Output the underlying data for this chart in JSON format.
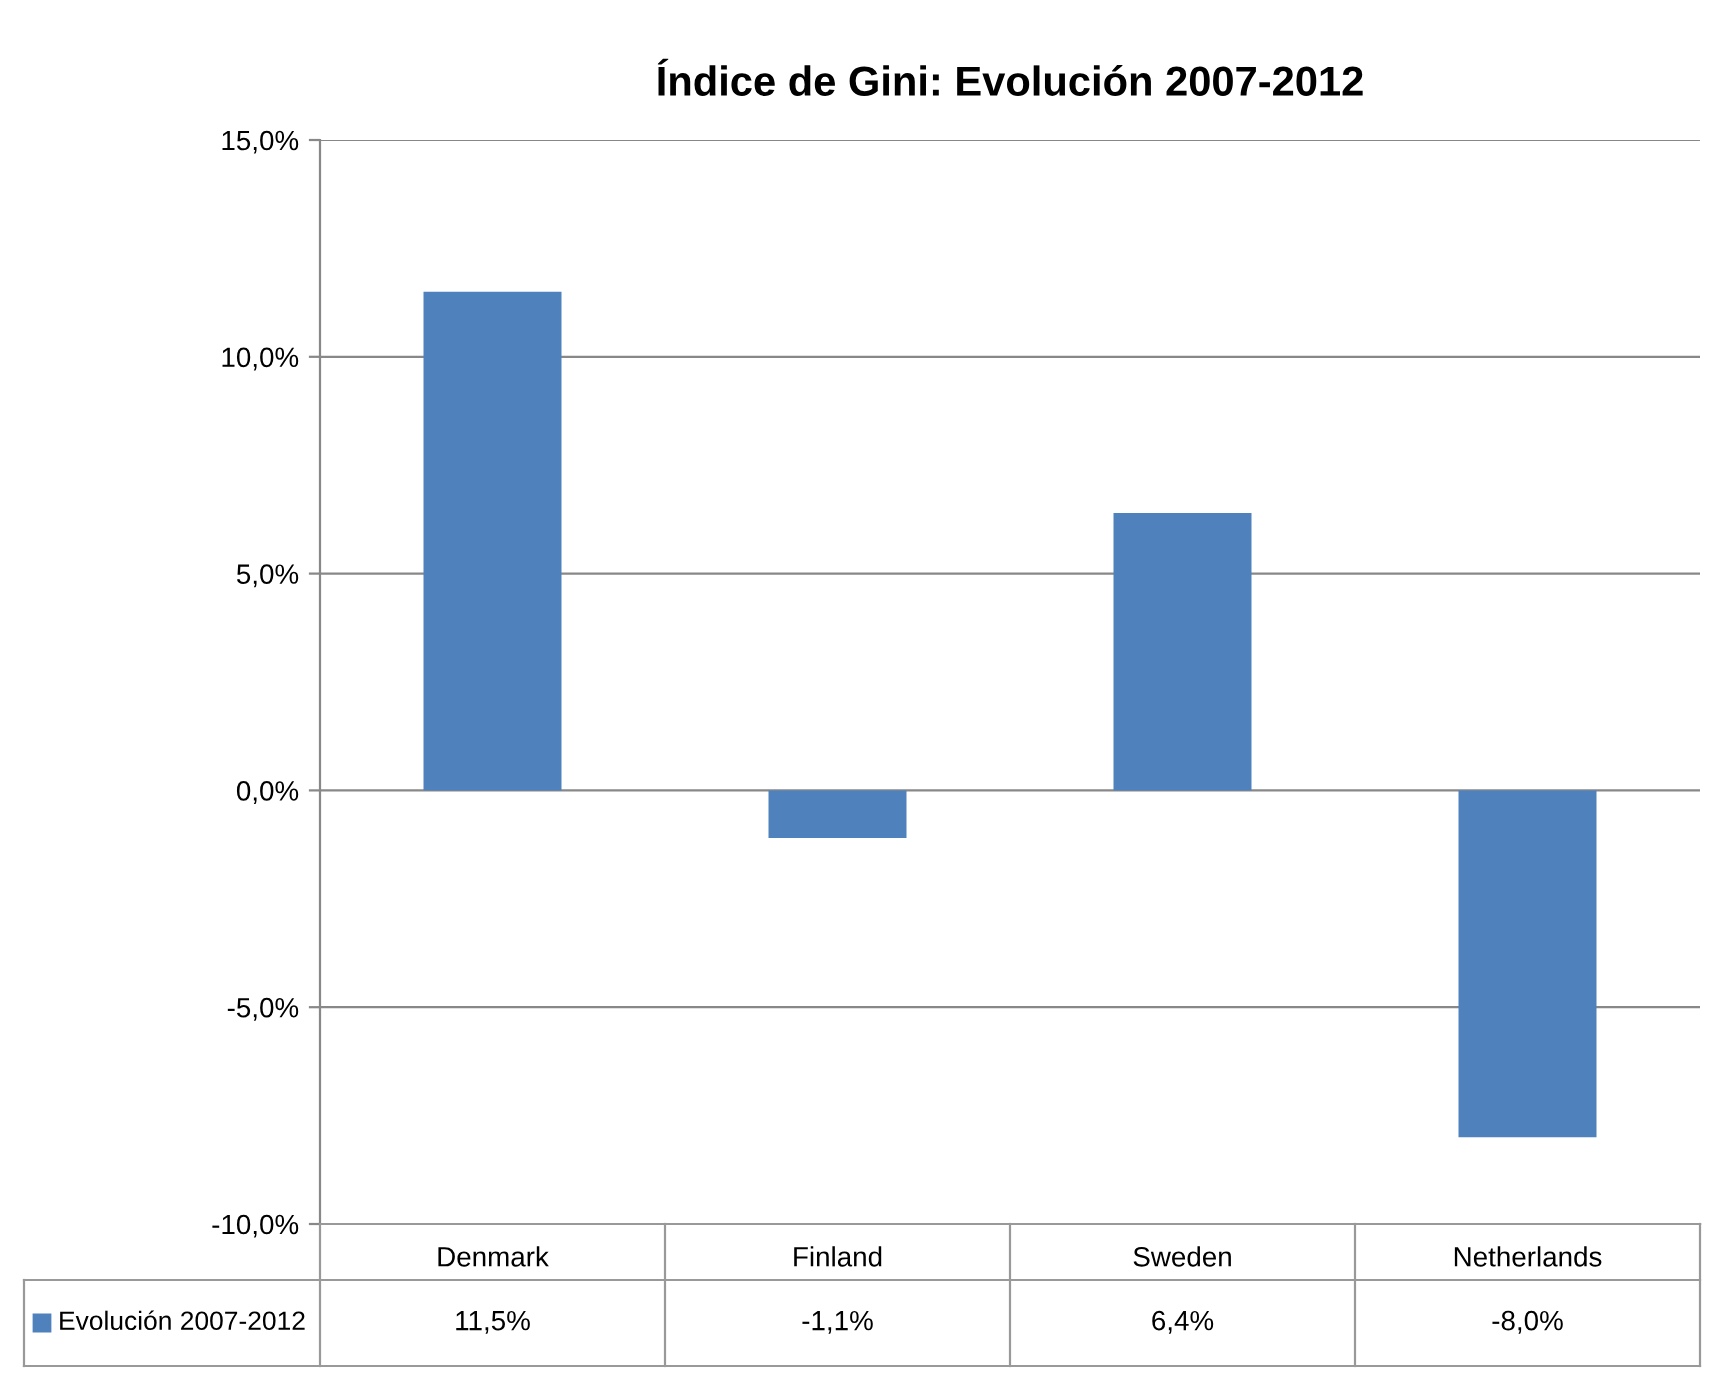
{
  "chart_data": {
    "type": "bar",
    "title": "Índice de Gini: Evolución 2007-2012",
    "categories": [
      "Denmark",
      "Finland",
      "Sweden",
      "Netherlands"
    ],
    "series": [
      {
        "name": "Evolución 2007-2012",
        "color": "#4f81bd",
        "values": [
          11.5,
          -1.1,
          6.4,
          -8.0
        ],
        "value_labels": [
          "11,5%",
          "-1,1%",
          "6,4%",
          "-8,0%"
        ]
      }
    ],
    "ylim": [
      -10,
      15
    ],
    "yticks": [
      {
        "value": -10,
        "label": "-10,0%"
      },
      {
        "value": -5,
        "label": "-5,0%"
      },
      {
        "value": 0,
        "label": "0,0%"
      },
      {
        "value": 5,
        "label": "5,0%"
      },
      {
        "value": 10,
        "label": "10,0%"
      },
      {
        "value": 15,
        "label": "15,0%"
      }
    ],
    "grid": "y",
    "legend": "bottom"
  }
}
